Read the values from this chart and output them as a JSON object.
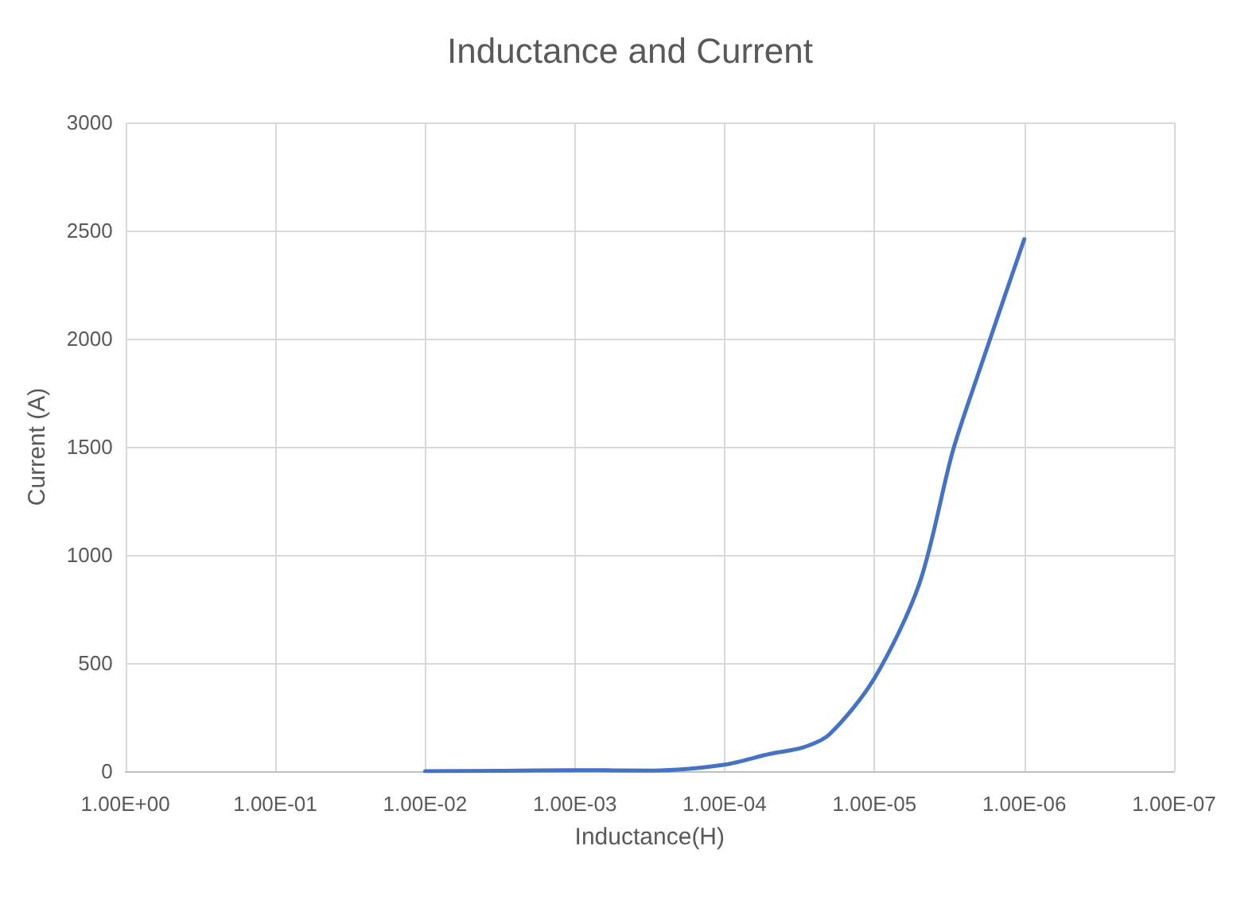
{
  "chart_data": {
    "type": "line",
    "title": "Inductance and Current",
    "xlabel": "Inductance(H)",
    "ylabel": "Current (A)",
    "log": "x",
    "grid": true,
    "marker": "none",
    "line_style": "solid",
    "xlim": [
      1,
      1e-07
    ],
    "xticks": [
      {
        "value": 1,
        "label": "1.00E+00"
      },
      {
        "value": 0.1,
        "label": "1.00E-01"
      },
      {
        "value": 0.01,
        "label": "1.00E-02"
      },
      {
        "value": 0.001,
        "label": "1.00E-03"
      },
      {
        "value": 0.0001,
        "label": "1.00E-04"
      },
      {
        "value": 1e-05,
        "label": "1.00E-05"
      },
      {
        "value": 1e-06,
        "label": "1.00E-06"
      },
      {
        "value": 1e-07,
        "label": "1.00E-07"
      }
    ],
    "ylim": [
      0,
      3000
    ],
    "yticks": [
      0,
      500,
      1000,
      1500,
      2000,
      2500,
      3000
    ],
    "x": [
      0.01,
      0.003,
      0.001,
      0.0003,
      0.0001,
      5e-05,
      3e-05,
      2e-05,
      1e-05,
      5e-06,
      3e-06,
      2e-06,
      1e-06
    ],
    "series": [
      {
        "color": "#4472c4",
        "values": [
          0,
          2,
          5,
          3,
          30,
          80,
          110,
          170,
          430,
          870,
          1480,
          1850,
          2460
        ]
      }
    ]
  }
}
